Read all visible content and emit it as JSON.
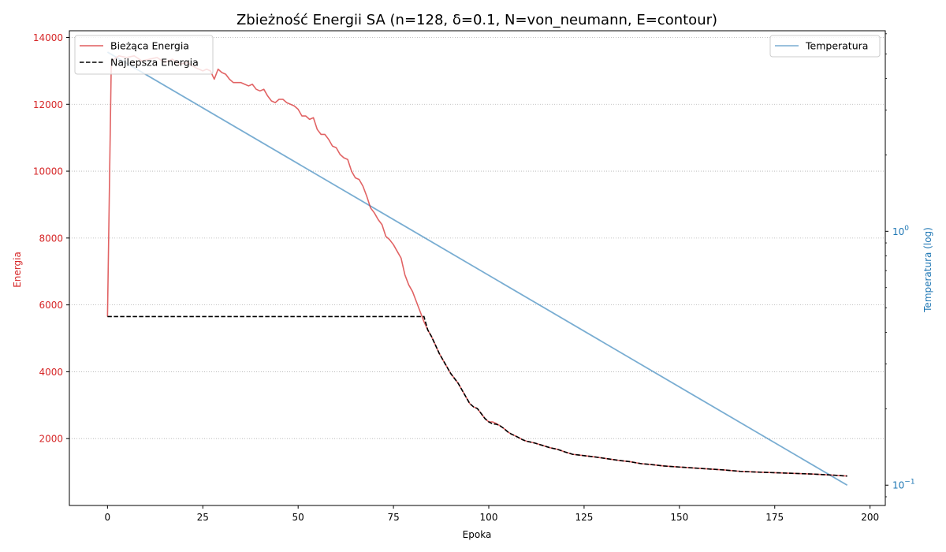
{
  "chart_data": {
    "type": "line",
    "title": "Zbieżność Energii SA (n=128, δ=0.1, N=von_neumann, E=contour)",
    "xlabel": "Epoka",
    "ylabel_left": "Energia",
    "ylabel_right": "Temperatura (log)",
    "xlim": [
      -10,
      204
    ],
    "ylim_left": [
      0,
      14200
    ],
    "ylim_right_log10": [
      -1.08,
      0.79
    ],
    "x_ticks": [
      "0",
      "25",
      "50",
      "75",
      "100",
      "125",
      "150",
      "175",
      "200"
    ],
    "y_ticks_left": [
      "2000",
      "4000",
      "6000",
      "8000",
      "10000",
      "12000",
      "14000"
    ],
    "y_ticks_right": [
      {
        "base": "10",
        "exp": "0",
        "value": 1
      },
      {
        "base": "10",
        "exp": "−1",
        "value": 0.1
      }
    ],
    "grid": "horizontal dotted",
    "legend_left": "top-left",
    "legend_right": "top-right",
    "series": [
      {
        "name": "Bieżąca Energia",
        "color": "#d62728",
        "axis": "left",
        "points": [
          [
            0,
            5650
          ],
          [
            1,
            13300
          ],
          [
            3,
            13450
          ],
          [
            5,
            13400
          ],
          [
            7,
            13450
          ],
          [
            9,
            13300
          ],
          [
            11,
            13350
          ],
          [
            13,
            13400
          ],
          [
            15,
            13250
          ],
          [
            17,
            13350
          ],
          [
            19,
            13200
          ],
          [
            21,
            13250
          ],
          [
            23,
            13100
          ],
          [
            25,
            13000
          ],
          [
            26,
            13050
          ],
          [
            27,
            13000
          ],
          [
            28,
            12750
          ],
          [
            29,
            13050
          ],
          [
            30,
            12950
          ],
          [
            31,
            12900
          ],
          [
            32,
            12750
          ],
          [
            33,
            12650
          ],
          [
            34,
            12650
          ],
          [
            35,
            12650
          ],
          [
            36,
            12600
          ],
          [
            37,
            12550
          ],
          [
            38,
            12600
          ],
          [
            39,
            12450
          ],
          [
            40,
            12400
          ],
          [
            41,
            12450
          ],
          [
            42,
            12250
          ],
          [
            43,
            12100
          ],
          [
            44,
            12050
          ],
          [
            45,
            12150
          ],
          [
            46,
            12150
          ],
          [
            47,
            12050
          ],
          [
            48,
            12000
          ],
          [
            49,
            11950
          ],
          [
            50,
            11850
          ],
          [
            51,
            11650
          ],
          [
            52,
            11650
          ],
          [
            53,
            11550
          ],
          [
            54,
            11600
          ],
          [
            55,
            11250
          ],
          [
            56,
            11100
          ],
          [
            57,
            11100
          ],
          [
            58,
            10950
          ],
          [
            59,
            10750
          ],
          [
            60,
            10700
          ],
          [
            61,
            10500
          ],
          [
            62,
            10400
          ],
          [
            63,
            10350
          ],
          [
            64,
            10000
          ],
          [
            65,
            9800
          ],
          [
            66,
            9750
          ],
          [
            67,
            9550
          ],
          [
            68,
            9250
          ],
          [
            69,
            8900
          ],
          [
            70,
            8750
          ],
          [
            71,
            8550
          ],
          [
            72,
            8400
          ],
          [
            73,
            8050
          ],
          [
            74,
            7950
          ],
          [
            75,
            7800
          ],
          [
            76,
            7600
          ],
          [
            77,
            7400
          ],
          [
            78,
            6900
          ],
          [
            79,
            6600
          ],
          [
            80,
            6400
          ],
          [
            81,
            6100
          ],
          [
            82,
            5800
          ],
          [
            83,
            5500
          ],
          [
            84,
            5250
          ],
          [
            85,
            5050
          ],
          [
            86,
            4800
          ],
          [
            87,
            4550
          ],
          [
            88,
            4350
          ],
          [
            89,
            4150
          ],
          [
            90,
            3950
          ],
          [
            91,
            3800
          ],
          [
            92,
            3650
          ],
          [
            93,
            3450
          ],
          [
            94,
            3250
          ],
          [
            95,
            3050
          ],
          [
            96,
            2950
          ],
          [
            97,
            2900
          ],
          [
            98,
            2750
          ],
          [
            99,
            2600
          ],
          [
            100,
            2500
          ],
          [
            101,
            2500
          ],
          [
            102,
            2450
          ],
          [
            103,
            2380
          ],
          [
            104,
            2300
          ],
          [
            105,
            2200
          ],
          [
            106,
            2130
          ],
          [
            107,
            2080
          ],
          [
            108,
            2020
          ],
          [
            109,
            1960
          ],
          [
            110,
            1920
          ],
          [
            112,
            1870
          ],
          [
            114,
            1800
          ],
          [
            116,
            1730
          ],
          [
            118,
            1680
          ],
          [
            120,
            1600
          ],
          [
            122,
            1530
          ],
          [
            125,
            1490
          ],
          [
            128,
            1450
          ],
          [
            131,
            1400
          ],
          [
            134,
            1350
          ],
          [
            137,
            1310
          ],
          [
            140,
            1250
          ],
          [
            143,
            1220
          ],
          [
            146,
            1180
          ],
          [
            150,
            1150
          ],
          [
            154,
            1120
          ],
          [
            158,
            1090
          ],
          [
            162,
            1060
          ],
          [
            166,
            1020
          ],
          [
            170,
            1000
          ],
          [
            175,
            980
          ],
          [
            180,
            960
          ],
          [
            185,
            940
          ],
          [
            190,
            910
          ],
          [
            194,
            880
          ]
        ]
      },
      {
        "name": "Najlepsza Energia",
        "color": "#000000",
        "axis": "left",
        "points": [
          [
            0,
            5650
          ],
          [
            83,
            5650
          ],
          [
            84,
            5250
          ],
          [
            85,
            5050
          ],
          [
            86,
            4800
          ],
          [
            87,
            4550
          ],
          [
            88,
            4350
          ],
          [
            89,
            4150
          ],
          [
            90,
            3950
          ],
          [
            91,
            3800
          ],
          [
            92,
            3650
          ],
          [
            93,
            3450
          ],
          [
            94,
            3250
          ],
          [
            95,
            3050
          ],
          [
            96,
            2950
          ],
          [
            97,
            2900
          ],
          [
            98,
            2750
          ],
          [
            99,
            2600
          ],
          [
            100,
            2500
          ],
          [
            101,
            2440
          ],
          [
            102,
            2430
          ],
          [
            103,
            2380
          ],
          [
            104,
            2300
          ],
          [
            105,
            2200
          ],
          [
            106,
            2130
          ],
          [
            107,
            2080
          ],
          [
            108,
            2020
          ],
          [
            109,
            1960
          ],
          [
            110,
            1920
          ],
          [
            112,
            1870
          ],
          [
            114,
            1800
          ],
          [
            116,
            1730
          ],
          [
            118,
            1680
          ],
          [
            120,
            1600
          ],
          [
            122,
            1530
          ],
          [
            125,
            1490
          ],
          [
            128,
            1450
          ],
          [
            131,
            1400
          ],
          [
            134,
            1350
          ],
          [
            137,
            1310
          ],
          [
            140,
            1250
          ],
          [
            143,
            1220
          ],
          [
            146,
            1180
          ],
          [
            150,
            1150
          ],
          [
            154,
            1120
          ],
          [
            158,
            1090
          ],
          [
            162,
            1060
          ],
          [
            166,
            1020
          ],
          [
            170,
            1000
          ],
          [
            175,
            980
          ],
          [
            180,
            960
          ],
          [
            185,
            940
          ],
          [
            190,
            910
          ],
          [
            194,
            880
          ]
        ]
      },
      {
        "name": "Temperatura",
        "color": "#1f77b4",
        "axis": "right",
        "log_values": [
          [
            0,
            0.706
          ],
          [
            194,
            -1.0
          ]
        ]
      }
    ]
  }
}
